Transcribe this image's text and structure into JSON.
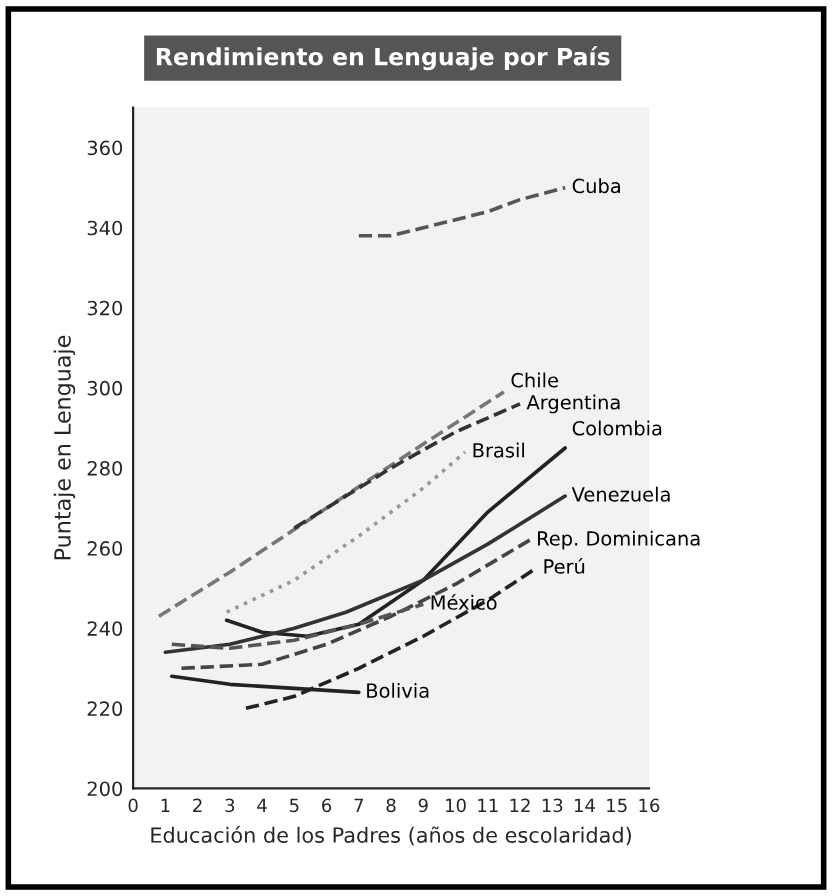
{
  "chart_data": {
    "type": "line",
    "title": "Rendimiento en Lenguaje por País",
    "xlabel": "Educación de los Padres (años de escolaridad)",
    "ylabel": "Puntaje en Lenguaje",
    "xlim": [
      0,
      16
    ],
    "xticks": [
      0,
      1,
      2,
      3,
      4,
      5,
      6,
      7,
      8,
      9,
      10,
      11,
      12,
      13,
      14,
      15,
      16
    ],
    "ylim": [
      200,
      370
    ],
    "yticks": [
      200,
      220,
      240,
      260,
      280,
      300,
      320,
      340,
      360
    ],
    "grid": false,
    "legend": false,
    "marker": "none",
    "series": [
      {
        "name": "Cuba",
        "color": "#555555",
        "line_style": "dashed",
        "x": [
          7,
          8,
          9,
          10,
          11,
          12,
          13.4
        ],
        "values": [
          338,
          338,
          340,
          342,
          344,
          347,
          350
        ]
      },
      {
        "name": "Chile",
        "color": "#777777",
        "line_style": "dashed",
        "x": [
          0.8,
          3,
          6,
          9,
          11.5
        ],
        "values": [
          243,
          254,
          270,
          286,
          299
        ]
      },
      {
        "name": "Argentina",
        "color": "#333333",
        "line_style": "dashed",
        "x": [
          5,
          8,
          10,
          12
        ],
        "values": [
          265,
          280,
          289,
          296
        ]
      },
      {
        "name": "Brasil",
        "color": "#999999",
        "line_style": "dotted",
        "x": [
          2.9,
          5,
          7,
          9,
          10.3
        ],
        "values": [
          244,
          252,
          263,
          275,
          284
        ]
      },
      {
        "name": "Colombia",
        "color": "#222222",
        "line_style": "solid",
        "x": [
          2.9,
          4,
          5.4,
          7,
          9,
          11,
          13.4
        ],
        "values": [
          242,
          239,
          238,
          241,
          252,
          269,
          285
        ]
      },
      {
        "name": "Venezuela",
        "color": "#333333",
        "line_style": "solid",
        "x": [
          1,
          3,
          5,
          6.6,
          9,
          11,
          13.4
        ],
        "values": [
          234,
          236,
          240,
          244,
          252,
          261,
          273
        ]
      },
      {
        "name": "Rep. Dominicana",
        "color": "#444444",
        "line_style": "dashed",
        "x": [
          1.5,
          4,
          6,
          8,
          10,
          12.3
        ],
        "values": [
          230,
          231,
          236,
          243,
          251,
          262
        ]
      },
      {
        "name": "México",
        "color": "#555555",
        "line_style": "dashed",
        "x": [
          1.2,
          3,
          5,
          7,
          9
        ],
        "values": [
          236,
          235,
          237,
          241,
          246
        ]
      },
      {
        "name": "Bolivia",
        "color": "#222222",
        "line_style": "solid",
        "x": [
          1.2,
          3,
          5,
          7
        ],
        "values": [
          228,
          226,
          225,
          224
        ]
      },
      {
        "name": "Perú",
        "color": "#222222",
        "line_style": "dashed",
        "x": [
          3.5,
          5,
          7,
          9,
          11,
          12.5
        ],
        "values": [
          220,
          223,
          230,
          238,
          247,
          255
        ]
      }
    ]
  }
}
